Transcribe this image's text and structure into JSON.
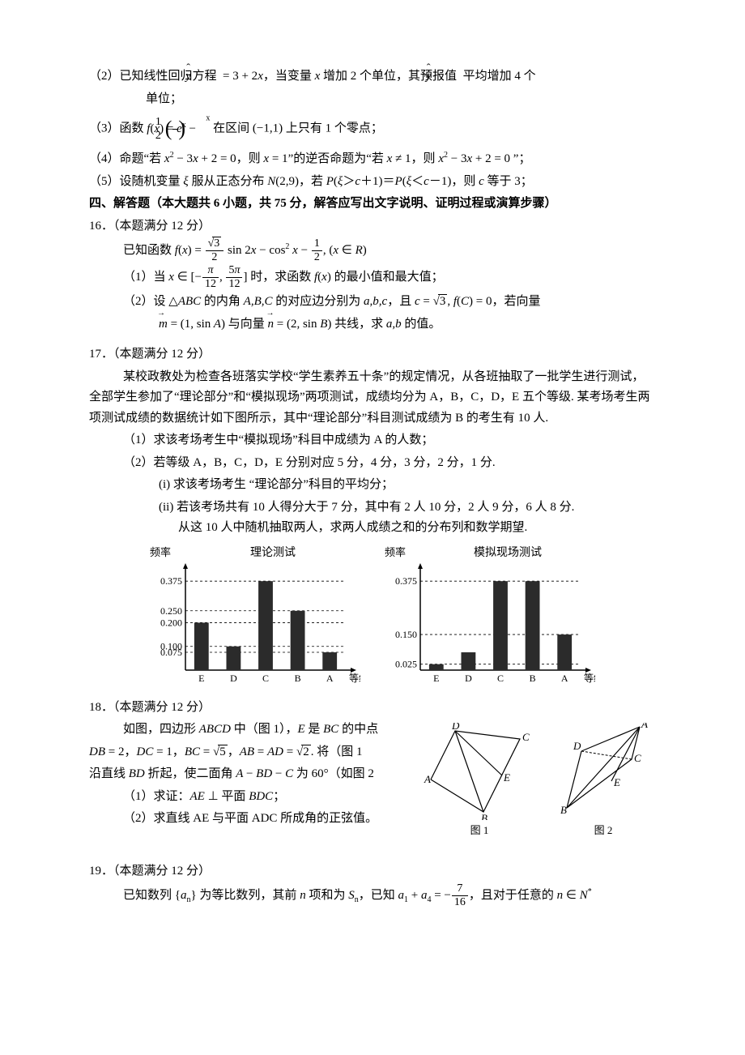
{
  "items": {
    "i2": "（2）已知线性回归方程 ",
    "i2_eq": "ŷ = 3 + 2x",
    "i2b": " ，当变量 x 增加 2 个单位，其预报值 ŷ 平均增加 4 个单位；",
    "i3": "（3）函数 ",
    "i3_eq": "f(x) = eˣ − (1/2)ˣ",
    "i3b": " 在区间 (−1,1) 上只有 1 个零点；",
    "i4": "（4）命题“若 x² − 3x + 2 = 0，则 x = 1”的逆否命题为“若 x ≠ 1，则 x² − 3x + 2 = 0 ”；",
    "i5": "（5）设随机变量 ξ 服从正态分布 N(2,9)，若 P(ξ＞c＋1)＝P(ξ＜c－1)，则 c 等于 3；"
  },
  "sec4": "四、解答题（本大题共 6 小题，共 75 分，解答应写出文字说明、证明过程或演算步骤）",
  "q16": {
    "head": "16．（本题满分 12 分）",
    "l1": "已知函数 ",
    "p1": "（1）当 ",
    "p1b": " 时，求函数 f(x) 的最小值和最大值；",
    "p2": "（2）设 △ABC 的内角 A,B,C 的对应边分别为 a,b,c ，且 c = √3, f(C) = 0 ，若向量",
    "p2b": "m = (1, sin A) 与向量 n = (2, sin B) 共线，求 a,b 的值。"
  },
  "q17": {
    "head": "17．（本题满分 12 分）",
    "body1": "某校政教处为检查各班落实学校“学生素养五十条”的规定情况，从各班抽取了一批学生进行测试，全部学生参加了“理论部分”和“模拟现场”两项测试，成绩均分为 A，B，C，D，E 五个等级. 某考场考生两项测试成绩的数据统计如下图所示，其中“理论部分”科目测试成绩为 B 的考生有 10 人.",
    "p1": "（1）求该考场考生中“模拟现场”科目中成绩为 A 的人数；",
    "p2": "（2）若等级 A，B，C，D，E 分别对应 5 分，4 分，3 分，2 分，1 分.",
    "p2i": "(i) 求该考场考生 “理论部分”科目的平均分；",
    "p2ii": "(ii) 若该考场共有 10 人得分大于 7 分，其中有 2 人 10 分，2 人 9 分，6 人 8 分. 从这 10 人中随机抽取两人，求两人成绩之和的分布列和数学期望."
  },
  "charts": {
    "left": {
      "title": "理论测试",
      "ylabel": "频率",
      "xlabel": "等级",
      "categories": [
        "E",
        "D",
        "C",
        "B",
        "A"
      ],
      "yticks": [
        0.075,
        0.1,
        0.2,
        0.25,
        0.375
      ],
      "values": [
        0.2,
        0.1,
        0.375,
        0.25,
        0.075
      ],
      "bar_color": "#2b2b2b",
      "ymax": 0.42
    },
    "right": {
      "title": "模拟现场测试",
      "ylabel": "频率",
      "xlabel": "等级",
      "categories": [
        "E",
        "D",
        "C",
        "B",
        "A"
      ],
      "yticks": [
        0.025,
        0.15,
        0.375
      ],
      "values": [
        0.025,
        0.075,
        0.375,
        0.375,
        0.15
      ],
      "bar_color": "#2b2b2b",
      "ymax": 0.42
    }
  },
  "q18": {
    "head": "18．（本题满分 12 分）",
    "l1": "如图，四边形 ABCD 中（图 1），E 是 BC 的中点",
    "l2_a": "DB = 2，DC = 1，BC = ",
    "l2_b": "，AB = AD = ",
    "l2_c": ". 将（图 1",
    "l3": "沿直线 BD 折起，使二面角 A − BD − C 为 60°（如图 2",
    "p1": "（1）求证：AE ⊥ 平面 BDC；",
    "p2": "（2）求直线 AE 与平面 ADC 所成角的正弦值。",
    "fig1cap": "图 1",
    "fig2cap": "图 2"
  },
  "q19": {
    "head": "19．（本题满分 12 分）",
    "l1a": "已知数列 {aₙ} 为等比数列，其前 n 项和为 Sₙ，已知 a₁ + a₄ = −",
    "l1b": "，且对于任意的 n ∈ N*"
  },
  "colors": {
    "text": "#000000",
    "bar": "#2b2b2b",
    "bg": "#ffffff"
  }
}
